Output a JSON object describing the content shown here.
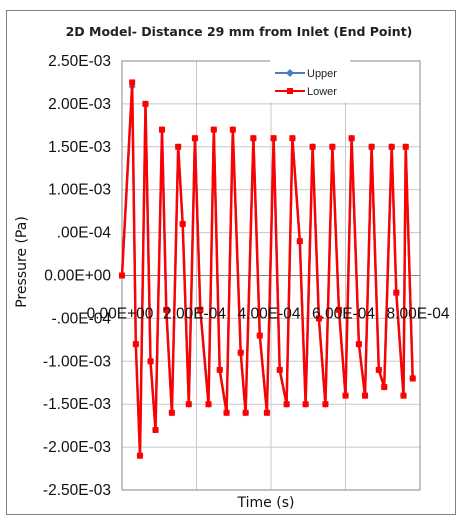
{
  "chart_data": {
    "type": "line",
    "title": "2D Model- Distance 29 mm from Inlet (End Point)",
    "xlabel": "Time (s)",
    "ylabel": "Pressure (Pa)",
    "xlim": [
      0,
      0.0008
    ],
    "ylim": [
      -0.0025,
      0.0025
    ],
    "grid": true,
    "legend_position": "top-right",
    "y_tick_labels": [
      "2.50E-03",
      "2.00E-03",
      "1.50E-03",
      "1.00E-03",
      "5.00E-04",
      "0.00E+00",
      "-5.00E-04",
      "-1.00E-03",
      "-1.50E-03",
      "-2.00E-03",
      "-2.50E-03"
    ],
    "y_tick_display": [
      "2.50E-03",
      "2.00E-03",
      "1.50E-03",
      "1.00E-03",
      ".00E-04",
      "0.00E+00",
      "-.00E-04",
      "-1.00E-03",
      "-1.50E-03",
      "-2.00E-03",
      "-2.50E-03"
    ],
    "x_tick_labels": [
      "0.00E+00",
      "2.00E-04",
      "4.00E-04",
      "6.00E-04",
      "8.00E-04"
    ],
    "x_tick_display": [
      "0.00E+00",
      "2.00E-04",
      "4.00E-04",
      "6.00E-04",
      "8.00E-04"
    ],
    "series": [
      {
        "name": "Upper",
        "color": "#4a7ebb",
        "marker": "diamond",
        "x": [
          0.0,
          2.73e-05,
          3.71e-05,
          4.82e-05,
          6.31e-05,
          7.66e-05,
          9e-05,
          0.0001074,
          0.0001189,
          0.0001339,
          0.0001508,
          0.0001629,
          0.0001792,
          0.0001958,
          0.0002103,
          0.0002323,
          0.0002464,
          0.0002624,
          0.0002807,
          0.0002975,
          0.0003187,
          0.0003319,
          0.0003527,
          0.0003698,
          0.000389,
          0.0004069,
          0.0004234,
          0.000442,
          0.0004575,
          0.0004773,
          0.0004929,
          0.0005116,
          0.0005287,
          0.0005461,
          0.0005647,
          0.0005823,
          0.0006001,
          0.0006165,
          0.0006359,
          0.0006524,
          0.0006701,
          0.0006894,
          0.000704,
          0.0007239,
          0.0007364,
          0.0007557,
          0.0007617,
          0.0007805
        ],
        "y": [
          0.0,
          0.0022,
          -0.0008,
          -0.0021,
          0.002,
          -0.001,
          -0.0018,
          0.0017,
          -0.0004,
          -0.0016,
          0.0015,
          0.0006,
          -0.0015,
          0.0016,
          -0.0004,
          -0.0015,
          0.0017,
          -0.0011,
          -0.0016,
          0.0017,
          -0.0009,
          -0.0016,
          0.0016,
          -0.0007,
          -0.0016,
          0.0016,
          -0.0011,
          -0.0015,
          0.0016,
          0.0004,
          -0.0015,
          0.0015,
          -0.0005,
          -0.0015,
          0.0015,
          -0.0004,
          -0.0014,
          0.0016,
          -0.0008,
          -0.0014,
          0.0015,
          -0.0011,
          -0.0013,
          0.0015,
          -0.0002,
          -0.0014,
          0.0015,
          -0.0012
        ]
      },
      {
        "name": "Lower",
        "color": "#ff0000",
        "marker": "square",
        "x": [
          0.0,
          2.73e-05,
          3.71e-05,
          4.82e-05,
          6.31e-05,
          7.66e-05,
          9e-05,
          0.0001074,
          0.0001189,
          0.0001339,
          0.0001508,
          0.0001629,
          0.0001792,
          0.0001958,
          0.0002103,
          0.0002323,
          0.0002464,
          0.0002624,
          0.0002807,
          0.0002975,
          0.0003187,
          0.0003319,
          0.0003527,
          0.0003698,
          0.000389,
          0.0004069,
          0.0004234,
          0.000442,
          0.0004575,
          0.0004773,
          0.0004929,
          0.0005116,
          0.0005287,
          0.0005461,
          0.0005647,
          0.0005823,
          0.0006001,
          0.0006165,
          0.0006359,
          0.0006524,
          0.0006701,
          0.0006894,
          0.000704,
          0.0007239,
          0.0007364,
          0.0007557,
          0.0007617,
          0.0007805
        ],
        "y": [
          0.0,
          0.00225,
          -0.0008,
          -0.0021,
          0.002,
          -0.001,
          -0.0018,
          0.0017,
          -0.0004,
          -0.0016,
          0.0015,
          0.0006,
          -0.0015,
          0.0016,
          -0.0004,
          -0.0015,
          0.0017,
          -0.0011,
          -0.0016,
          0.0017,
          -0.0009,
          -0.0016,
          0.0016,
          -0.0007,
          -0.0016,
          0.0016,
          -0.0011,
          -0.0015,
          0.0016,
          0.0004,
          -0.0015,
          0.0015,
          -0.0005,
          -0.0015,
          0.0015,
          -0.0004,
          -0.0014,
          0.0016,
          -0.0008,
          -0.0014,
          0.0015,
          -0.0011,
          -0.0013,
          0.0015,
          -0.0002,
          -0.0014,
          0.0015,
          -0.0012
        ]
      }
    ]
  }
}
